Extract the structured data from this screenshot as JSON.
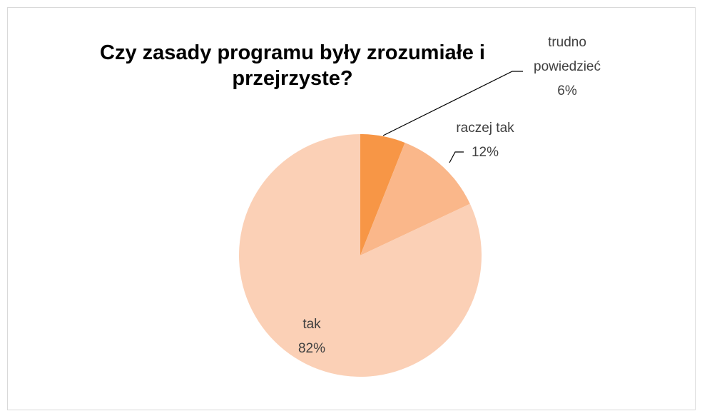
{
  "chart_data": {
    "type": "pie",
    "title": "Czy zasady programu były zrozumiałe i przejrzyste?",
    "categories": [
      "trudno powiedzieć",
      "raczej tak",
      "tak"
    ],
    "values": [
      6,
      12,
      82
    ],
    "value_labels": [
      "6%",
      "12%",
      "82%"
    ],
    "colors": [
      "#f79646",
      "#fab78a",
      "#fbd0b6"
    ]
  }
}
